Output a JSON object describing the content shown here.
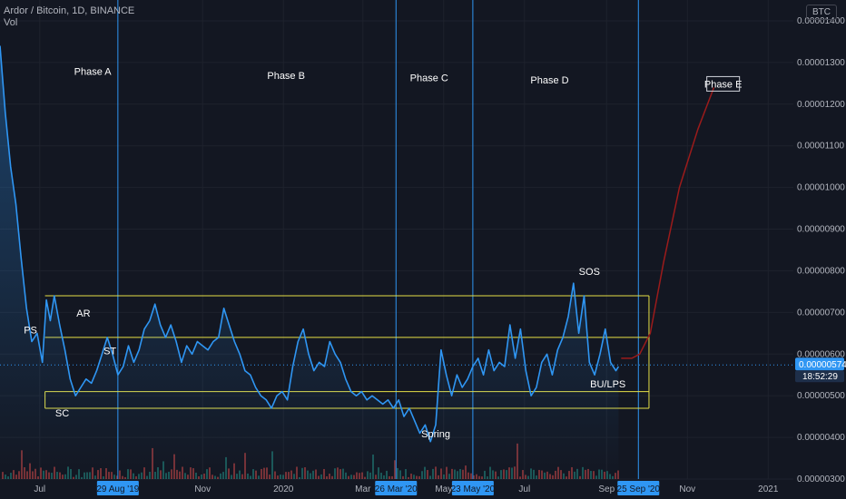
{
  "header": {
    "title": "Ardor / Bitcoin, 1D, BINANCE",
    "indicator": "Vol",
    "currency": "BTC"
  },
  "price_tag": {
    "value": "0.00000574",
    "countdown": "18:52:29"
  },
  "colors": {
    "background": "#131722",
    "price_line": "#2f96f3",
    "range_lines": "#e6df46",
    "projection": "#9b1b1b",
    "phase_lines": "#2f96f3",
    "price_tag_bg": "#2f96f3",
    "volume_up": "#26a69a",
    "volume_down": "#ef5350"
  },
  "chart_data": {
    "type": "line",
    "title": "Ardor / Bitcoin, 1D, BINANCE",
    "xlabel": "",
    "ylabel": "BTC",
    "ylim": [
      3e-06,
      1.45e-05
    ],
    "y_ticks": [
      "0.00000300",
      "0.00000400",
      "0.00000500",
      "0.00000600",
      "0.00000700",
      "0.00000800",
      "0.00000900",
      "0.00001000",
      "0.00001100",
      "0.00001200",
      "0.00001300",
      "0.00001400"
    ],
    "x_ticks": [
      "Jul",
      "Nov",
      "2020",
      "Mar",
      "May",
      "Jul",
      "Sep",
      "Nov",
      "2021"
    ],
    "highlighted_dates": [
      "29 Aug '19",
      "26 Mar '20",
      "23 May '20",
      "25 Sep '20"
    ],
    "grid": true,
    "series": [
      {
        "points": [
          [
            "2019-06-01",
            1.34e-05
          ],
          [
            "2019-06-05",
            1.18e-05
          ],
          [
            "2019-06-09",
            1.05e-05
          ],
          [
            "2019-06-13",
            9.6e-06
          ],
          [
            "2019-06-17",
            8.3e-06
          ],
          [
            "2019-06-21",
            7.1e-06
          ],
          [
            "2019-06-25",
            6.3e-06
          ],
          [
            "2019-06-29",
            6.5e-06
          ],
          [
            "2019-07-03",
            5.8e-06
          ],
          [
            "2019-07-06",
            7.3e-06
          ],
          [
            "2019-07-09",
            6.8e-06
          ],
          [
            "2019-07-12",
            7.4e-06
          ],
          [
            "2019-07-16",
            6.7e-06
          ],
          [
            "2019-07-20",
            6.1e-06
          ],
          [
            "2019-07-24",
            5.4e-06
          ],
          [
            "2019-07-28",
            5e-06
          ],
          [
            "2019-08-01",
            5.2e-06
          ],
          [
            "2019-08-05",
            5.4e-06
          ],
          [
            "2019-08-09",
            5.3e-06
          ],
          [
            "2019-08-13",
            5.6e-06
          ],
          [
            "2019-08-17",
            6e-06
          ],
          [
            "2019-08-21",
            6.4e-06
          ],
          [
            "2019-08-25",
            6e-06
          ],
          [
            "2019-08-29",
            5.5e-06
          ],
          [
            "2019-09-02",
            5.7e-06
          ],
          [
            "2019-09-06",
            6.2e-06
          ],
          [
            "2019-09-10",
            5.8e-06
          ],
          [
            "2019-09-14",
            6.1e-06
          ],
          [
            "2019-09-18",
            6.6e-06
          ],
          [
            "2019-09-22",
            6.8e-06
          ],
          [
            "2019-09-26",
            7.2e-06
          ],
          [
            "2019-09-30",
            6.7e-06
          ],
          [
            "2019-10-04",
            6.4e-06
          ],
          [
            "2019-10-08",
            6.7e-06
          ],
          [
            "2019-10-12",
            6.3e-06
          ],
          [
            "2019-10-16",
            5.8e-06
          ],
          [
            "2019-10-20",
            6.2e-06
          ],
          [
            "2019-10-24",
            6e-06
          ],
          [
            "2019-10-28",
            6.3e-06
          ],
          [
            "2019-11-01",
            6.2e-06
          ],
          [
            "2019-11-05",
            6.1e-06
          ],
          [
            "2019-11-09",
            6.3e-06
          ],
          [
            "2019-11-13",
            6.4e-06
          ],
          [
            "2019-11-17",
            7.1e-06
          ],
          [
            "2019-11-21",
            6.7e-06
          ],
          [
            "2019-11-25",
            6.3e-06
          ],
          [
            "2019-11-29",
            6e-06
          ],
          [
            "2019-12-03",
            5.6e-06
          ],
          [
            "2019-12-07",
            5.5e-06
          ],
          [
            "2019-12-11",
            5.2e-06
          ],
          [
            "2019-12-15",
            5e-06
          ],
          [
            "2019-12-19",
            4.9e-06
          ],
          [
            "2019-12-23",
            4.7e-06
          ],
          [
            "2019-12-27",
            5e-06
          ],
          [
            "2019-12-31",
            5.1e-06
          ],
          [
            "2020-01-04",
            4.9e-06
          ],
          [
            "2020-01-08",
            5.7e-06
          ],
          [
            "2020-01-12",
            6.3e-06
          ],
          [
            "2020-01-16",
            6.6e-06
          ],
          [
            "2020-01-20",
            6e-06
          ],
          [
            "2020-01-24",
            5.6e-06
          ],
          [
            "2020-01-28",
            5.8e-06
          ],
          [
            "2020-02-01",
            5.7e-06
          ],
          [
            "2020-02-05",
            6.3e-06
          ],
          [
            "2020-02-09",
            6e-06
          ],
          [
            "2020-02-13",
            5.8e-06
          ],
          [
            "2020-02-17",
            5.4e-06
          ],
          [
            "2020-02-21",
            5.1e-06
          ],
          [
            "2020-02-25",
            5e-06
          ],
          [
            "2020-02-29",
            5.1e-06
          ],
          [
            "2020-03-04",
            4.9e-06
          ],
          [
            "2020-03-08",
            5e-06
          ],
          [
            "2020-03-12",
            4.9e-06
          ],
          [
            "2020-03-16",
            4.8e-06
          ],
          [
            "2020-03-20",
            4.9e-06
          ],
          [
            "2020-03-24",
            4.7e-06
          ],
          [
            "2020-03-28",
            4.9e-06
          ],
          [
            "2020-04-01",
            4.5e-06
          ],
          [
            "2020-04-05",
            4.7e-06
          ],
          [
            "2020-04-09",
            4.4e-06
          ],
          [
            "2020-04-13",
            4.1e-06
          ],
          [
            "2020-04-17",
            4.3e-06
          ],
          [
            "2020-04-21",
            3.9e-06
          ],
          [
            "2020-04-25",
            4.3e-06
          ],
          [
            "2020-04-29",
            6.1e-06
          ],
          [
            "2020-05-03",
            5.5e-06
          ],
          [
            "2020-05-07",
            5e-06
          ],
          [
            "2020-05-11",
            5.5e-06
          ],
          [
            "2020-05-15",
            5.2e-06
          ],
          [
            "2020-05-19",
            5.4e-06
          ],
          [
            "2020-05-23",
            5.7e-06
          ],
          [
            "2020-05-27",
            5.9e-06
          ],
          [
            "2020-05-31",
            5.5e-06
          ],
          [
            "2020-06-04",
            6.1e-06
          ],
          [
            "2020-06-08",
            5.6e-06
          ],
          [
            "2020-06-12",
            5.8e-06
          ],
          [
            "2020-06-16",
            5.7e-06
          ],
          [
            "2020-06-20",
            6.7e-06
          ],
          [
            "2020-06-24",
            5.9e-06
          ],
          [
            "2020-06-28",
            6.6e-06
          ],
          [
            "2020-07-02",
            5.6e-06
          ],
          [
            "2020-07-06",
            5e-06
          ],
          [
            "2020-07-10",
            5.2e-06
          ],
          [
            "2020-07-14",
            5.8e-06
          ],
          [
            "2020-07-18",
            6e-06
          ],
          [
            "2020-07-22",
            5.5e-06
          ],
          [
            "2020-07-26",
            6.1e-06
          ],
          [
            "2020-07-30",
            6.4e-06
          ],
          [
            "2020-08-03",
            6.9e-06
          ],
          [
            "2020-08-07",
            7.7e-06
          ],
          [
            "2020-08-11",
            6.5e-06
          ],
          [
            "2020-08-15",
            7.4e-06
          ],
          [
            "2020-08-19",
            5.8e-06
          ],
          [
            "2020-08-23",
            5.5e-06
          ],
          [
            "2020-08-27",
            6e-06
          ],
          [
            "2020-08-31",
            6.6e-06
          ],
          [
            "2020-09-04",
            5.8e-06
          ],
          [
            "2020-09-08",
            5.6e-06
          ],
          [
            "2020-09-10",
            5.7e-06
          ]
        ]
      }
    ],
    "projection": [
      [
        "2020-09-12",
        5.9e-06
      ],
      [
        "2020-09-20",
        5.9e-06
      ],
      [
        "2020-09-26",
        6e-06
      ],
      [
        "2020-10-04",
        6.5e-06
      ],
      [
        "2020-10-14",
        8.2e-06
      ],
      [
        "2020-10-26",
        1e-05
      ],
      [
        "2020-11-09",
        1.14e-05
      ],
      [
        "2020-11-21",
        1.24e-05
      ]
    ],
    "support_resistance": [
      {
        "from": "2019-07-05",
        "to": "2020-10-03",
        "value": 7.4e-06
      },
      {
        "from": "2019-07-05",
        "to": "2020-10-03",
        "value": 6.4e-06
      },
      {
        "from": "2019-07-05",
        "to": "2020-10-03",
        "value": 5.1e-06
      },
      {
        "from": "2019-07-05",
        "to": "2020-10-03",
        "value": 4.7e-06
      }
    ],
    "phase_lines": [
      "2019-08-29",
      "2020-03-26",
      "2020-05-23",
      "2020-09-25"
    ],
    "phase_labels": [
      {
        "text": "Phase A",
        "date": "2019-08-10",
        "value": 1.27e-05
      },
      {
        "text": "Phase B",
        "date": "2020-01-03",
        "value": 1.26e-05
      },
      {
        "text": "Phase C",
        "date": "2020-04-20",
        "value": 1.255e-05
      },
      {
        "text": "Phase D",
        "date": "2020-07-20",
        "value": 1.25e-05
      },
      {
        "text": "Phase E",
        "date": "2020-11-28",
        "value": 1.24e-05
      }
    ],
    "event_labels": [
      {
        "text": "PS",
        "date": "2019-06-24",
        "value": 6.5e-06
      },
      {
        "text": "AR",
        "date": "2019-08-03",
        "value": 6.9e-06
      },
      {
        "text": "ST",
        "date": "2019-08-23",
        "value": 6e-06
      },
      {
        "text": "SC",
        "date": "2019-07-18",
        "value": 4.5e-06
      },
      {
        "text": "Spring",
        "date": "2020-04-25",
        "value": 4e-06
      },
      {
        "text": "SOS",
        "date": "2020-08-19",
        "value": 7.9e-06
      },
      {
        "text": "BU/LPS",
        "date": "2020-09-02",
        "value": 5.2e-06
      }
    ]
  }
}
